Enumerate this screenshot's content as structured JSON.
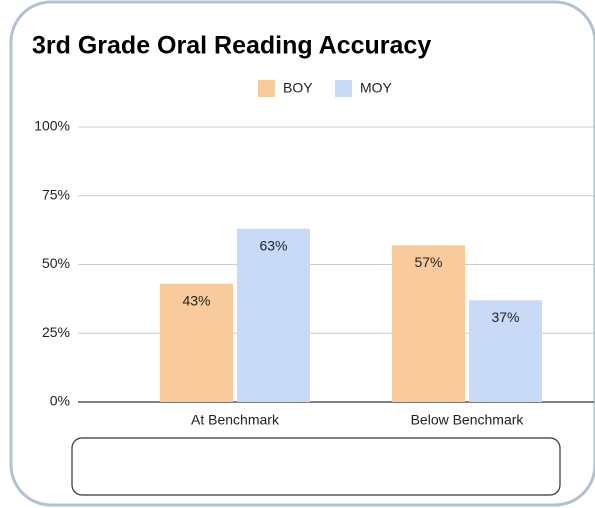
{
  "chart_data": {
    "type": "bar",
    "title": "3rd Grade Oral Reading Accuracy",
    "categories": [
      "At Benchmark",
      "Below Benchmark"
    ],
    "series": [
      {
        "name": "BOY",
        "color": "#f9cb9c",
        "values": [
          43,
          57
        ],
        "value_labels": [
          "43%",
          "57%"
        ]
      },
      {
        "name": "MOY",
        "color": "#c9daf8",
        "values": [
          63,
          37
        ],
        "value_labels": [
          "63%",
          "37%"
        ]
      }
    ],
    "ylim": [
      0,
      100
    ],
    "yticks": [
      {
        "value": 0,
        "label": "0%"
      },
      {
        "value": 25,
        "label": "25%"
      },
      {
        "value": 50,
        "label": "50%"
      },
      {
        "value": 75,
        "label": "75%"
      },
      {
        "value": 100,
        "label": "100%"
      }
    ],
    "grid": true,
    "legend": "top"
  }
}
